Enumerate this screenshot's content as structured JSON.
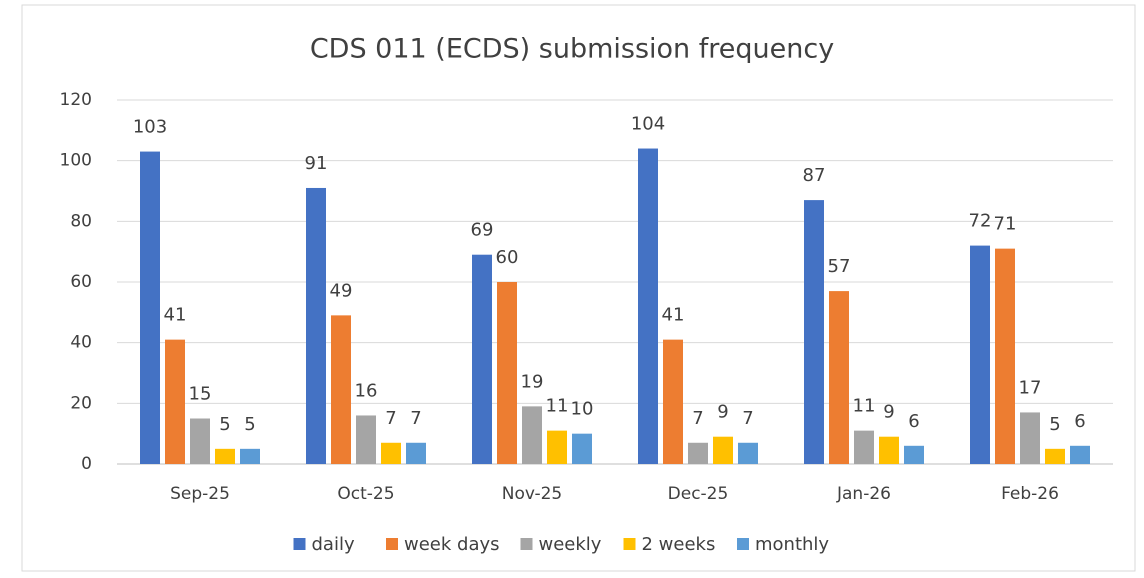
{
  "chart_data": {
    "type": "bar",
    "title": "CDS 011 (ECDS) submission frequency",
    "categories": [
      "Sep-25",
      "Oct-25",
      "Nov-25",
      "Dec-25",
      "Jan-26",
      "Feb-26"
    ],
    "series": [
      {
        "name": "daily",
        "color": "#4472c4",
        "values": [
          103,
          91,
          69,
          104,
          87,
          72
        ]
      },
      {
        "name": "week days",
        "color": "#ed7d31",
        "values": [
          41,
          49,
          60,
          41,
          57,
          71
        ]
      },
      {
        "name": "weekly",
        "color": "#a5a5a5",
        "values": [
          15,
          16,
          19,
          7,
          11,
          17
        ]
      },
      {
        "name": "2 weeks",
        "color": "#ffc000",
        "values": [
          5,
          7,
          11,
          9,
          9,
          5
        ]
      },
      {
        "name": "monthly",
        "color": "#5b9bd5",
        "values": [
          5,
          7,
          10,
          7,
          6,
          6
        ]
      }
    ],
    "ylim": [
      0,
      120
    ],
    "yticks": [
      0,
      20,
      40,
      60,
      80,
      100,
      120
    ],
    "grid": true,
    "legend": "bottom"
  }
}
